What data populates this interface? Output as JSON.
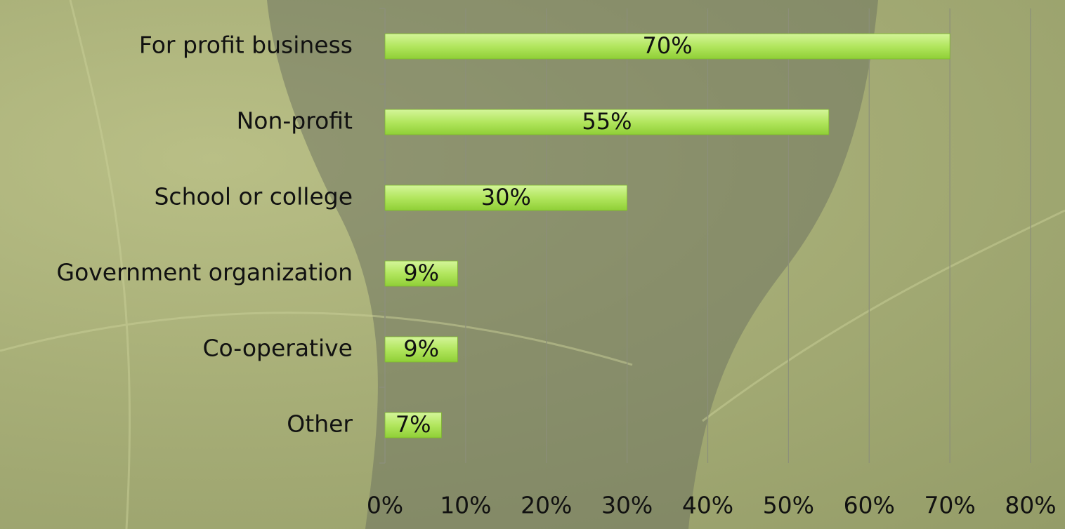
{
  "chart_data": {
    "type": "bar",
    "orientation": "horizontal",
    "categories": [
      "For profit business",
      "Non-profit",
      "School or college",
      "Government organization",
      "Co-operative",
      "Other"
    ],
    "values": [
      70,
      55,
      30,
      9,
      9,
      7
    ],
    "value_labels": [
      "70%",
      "55%",
      "30%",
      "9%",
      "9%",
      "7%"
    ],
    "color": "#b2e65e",
    "xlim": [
      0,
      80
    ],
    "xticks": [
      {
        "value": 0,
        "label": "0%"
      },
      {
        "value": 10,
        "label": "10%"
      },
      {
        "value": 20,
        "label": "20%"
      },
      {
        "value": 30,
        "label": "30%"
      },
      {
        "value": 40,
        "label": "40%"
      },
      {
        "value": 50,
        "label": "50%"
      },
      {
        "value": 60,
        "label": "60%"
      },
      {
        "value": 70,
        "label": "70%"
      },
      {
        "value": 80,
        "label": "80%"
      }
    ],
    "grid": true
  }
}
